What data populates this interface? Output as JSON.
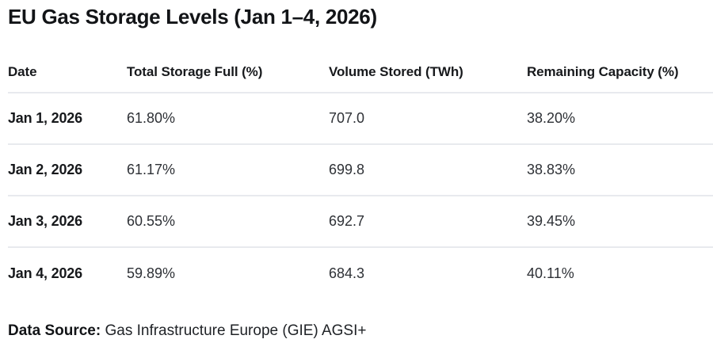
{
  "title": "EU Gas Storage Levels (Jan 1–4, 2026)",
  "table": {
    "columns": [
      "Date",
      "Total Storage Full (%)",
      "Volume Stored (TWh)",
      "Remaining Capacity (%)"
    ],
    "rows": [
      [
        "Jan 1, 2026",
        "61.80%",
        "707.0",
        "38.20%"
      ],
      [
        "Jan 2, 2026",
        "61.17%",
        "699.8",
        "38.83%"
      ],
      [
        "Jan 3, 2026",
        "60.55%",
        "692.7",
        "39.45%"
      ],
      [
        "Jan 4, 2026",
        "59.89%",
        "684.3",
        "40.11%"
      ]
    ]
  },
  "footer": {
    "label": "Data Source:",
    "value": "Gas Infrastructure Europe (GIE) AGSI+"
  },
  "colors": {
    "background": "#ffffff",
    "divider": "#e8eaee",
    "text_primary": "#121417",
    "text_secondary": "#2e3136"
  },
  "chart_data": {
    "type": "table",
    "title": "EU Gas Storage Levels (Jan 1–4, 2026)",
    "columns": [
      "Date",
      "Total Storage Full (%)",
      "Volume Stored (TWh)",
      "Remaining Capacity (%)"
    ],
    "rows": [
      {
        "date": "Jan 1, 2026",
        "total_storage_full_pct": 61.8,
        "volume_stored_twh": 707.0,
        "remaining_capacity_pct": 38.2
      },
      {
        "date": "Jan 2, 2026",
        "total_storage_full_pct": 61.17,
        "volume_stored_twh": 699.8,
        "remaining_capacity_pct": 38.83
      },
      {
        "date": "Jan 3, 2026",
        "total_storage_full_pct": 60.55,
        "volume_stored_twh": 692.7,
        "remaining_capacity_pct": 39.45
      },
      {
        "date": "Jan 4, 2026",
        "total_storage_full_pct": 59.89,
        "volume_stored_twh": 684.3,
        "remaining_capacity_pct": 40.11
      }
    ],
    "source": "Gas Infrastructure Europe (GIE) AGSI+"
  }
}
